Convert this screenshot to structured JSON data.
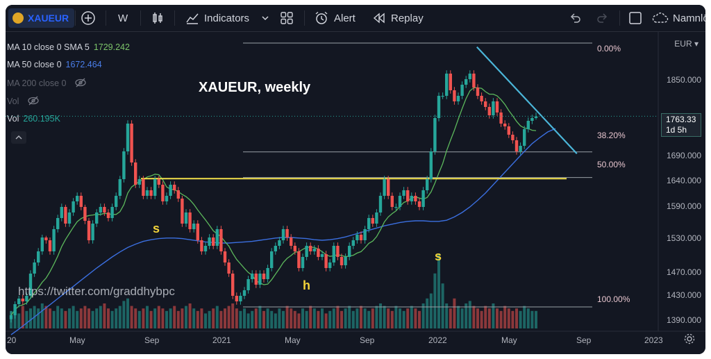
{
  "toolbar": {
    "symbol": "XAUEUR",
    "interval": "W",
    "indicators_label": "Indicators",
    "alert_label": "Alert",
    "replay_label": "Replay",
    "layout_name": "Namnlö"
  },
  "legend": {
    "ma10": {
      "label": "MA 10 close 0 SMA 5",
      "value": "1729.242",
      "color": "#5cb85c"
    },
    "ma50": {
      "label": "MA 50 close 0",
      "value": "1672.464",
      "color": "#3b6fe0"
    },
    "ma200": {
      "label": "MA 200 close 0"
    },
    "vol": {
      "label": "Vol"
    },
    "vol2": {
      "label": "Vol",
      "value": "260.195K"
    }
  },
  "annotations": {
    "title": "XAUEUR, weekly",
    "watermark": "https://twitter.com/graddhybpc",
    "left_shoulder": "s",
    "head": "h",
    "right_shoulder": "s"
  },
  "price_axis": {
    "currency": "EUR",
    "last_price": "1763.33",
    "countdown": "1d 5h"
  },
  "colors": {
    "up": "#26a69a",
    "down": "#ef5350",
    "neckline": "#f2e04b",
    "trendline": "#4bb6d9",
    "fib": "#9aa0a6"
  },
  "chart_data": {
    "type": "candlestick",
    "title": "XAUEUR, weekly",
    "ylim": [
      1370,
      1930
    ],
    "y_ticks": [
      1850,
      1690,
      1640,
      1590,
      1530,
      1470,
      1430,
      1390
    ],
    "y_tick_labels": [
      "1850.000",
      "1690.000",
      "1640.000",
      "1590.000",
      "1530.000",
      "1470.000",
      "1430.000",
      "1390.000"
    ],
    "x_ticks": [
      {
        "label": "20",
        "t": 0
      },
      {
        "label": "May",
        "t": 17
      },
      {
        "label": "Sep",
        "t": 35
      },
      {
        "label": "2021",
        "t": 52
      },
      {
        "label": "May",
        "t": 70
      },
      {
        "label": "Sep",
        "t": 88
      },
      {
        "label": "2022",
        "t": 104
      },
      {
        "label": "May",
        "t": 122
      },
      {
        "label": "Sep",
        "t": 140
      },
      {
        "label": "2023",
        "t": 157
      }
    ],
    "candles": {
      "o": [
        1398,
        1405,
        1425,
        1435,
        1430,
        1440,
        1480,
        1500,
        1520,
        1545,
        1540,
        1520,
        1560,
        1580,
        1600,
        1570,
        1590,
        1610,
        1620,
        1600,
        1575,
        1540,
        1570,
        1590,
        1600,
        1590,
        1580,
        1600,
        1620,
        1650,
        1700,
        1750,
        1680,
        1640,
        1650,
        1620,
        1630,
        1620,
        1650,
        1640,
        1610,
        1620,
        1640,
        1630,
        1615,
        1570,
        1590,
        1560,
        1570,
        1540,
        1520,
        1530,
        1545,
        1530,
        1560,
        1520,
        1500,
        1480,
        1440,
        1430,
        1440,
        1450,
        1470,
        1480,
        1460,
        1480,
        1470,
        1490,
        1520,
        1530,
        1540,
        1560,
        1545,
        1530,
        1520,
        1490,
        1510,
        1530,
        1520,
        1525,
        1510,
        1515,
        1490,
        1500,
        1530,
        1510,
        1495,
        1510,
        1530,
        1540,
        1550,
        1540,
        1560,
        1580,
        1570,
        1590,
        1620,
        1650,
        1620,
        1600,
        1600,
        1620,
        1630,
        1610,
        1620,
        1610,
        1600,
        1630,
        1650,
        1700,
        1760,
        1800,
        1800,
        1840,
        1810,
        1790,
        1800,
        1820,
        1830,
        1840,
        1815,
        1800,
        1790,
        1780,
        1765,
        1790,
        1770,
        1750,
        1745,
        1730,
        1720,
        1700,
        1710,
        1740,
        1755,
        1760
      ],
      "c": [
        1405,
        1425,
        1435,
        1430,
        1440,
        1480,
        1500,
        1520,
        1545,
        1540,
        1520,
        1560,
        1580,
        1600,
        1570,
        1590,
        1610,
        1620,
        1600,
        1575,
        1540,
        1570,
        1590,
        1600,
        1590,
        1580,
        1600,
        1620,
        1650,
        1700,
        1750,
        1680,
        1640,
        1650,
        1620,
        1630,
        1620,
        1650,
        1640,
        1610,
        1620,
        1640,
        1630,
        1615,
        1570,
        1590,
        1560,
        1570,
        1540,
        1520,
        1530,
        1545,
        1530,
        1560,
        1520,
        1500,
        1480,
        1440,
        1430,
        1440,
        1450,
        1470,
        1480,
        1460,
        1480,
        1470,
        1490,
        1520,
        1530,
        1540,
        1560,
        1545,
        1530,
        1520,
        1490,
        1510,
        1530,
        1520,
        1525,
        1510,
        1515,
        1490,
        1500,
        1530,
        1510,
        1495,
        1510,
        1530,
        1540,
        1550,
        1540,
        1560,
        1580,
        1570,
        1590,
        1620,
        1650,
        1620,
        1600,
        1600,
        1620,
        1630,
        1610,
        1620,
        1610,
        1600,
        1630,
        1650,
        1700,
        1760,
        1800,
        1800,
        1840,
        1810,
        1790,
        1800,
        1820,
        1830,
        1840,
        1815,
        1800,
        1790,
        1780,
        1765,
        1790,
        1770,
        1750,
        1745,
        1730,
        1720,
        1700,
        1710,
        1740,
        1755,
        1760,
        1763
      ],
      "h": [
        1412,
        1430,
        1440,
        1442,
        1446,
        1486,
        1506,
        1526,
        1550,
        1548,
        1545,
        1566,
        1586,
        1606,
        1604,
        1596,
        1616,
        1626,
        1626,
        1604,
        1580,
        1576,
        1596,
        1606,
        1606,
        1596,
        1606,
        1626,
        1656,
        1706,
        1756,
        1756,
        1686,
        1656,
        1656,
        1636,
        1636,
        1656,
        1656,
        1646,
        1626,
        1646,
        1646,
        1636,
        1620,
        1596,
        1596,
        1576,
        1576,
        1546,
        1536,
        1551,
        1551,
        1566,
        1566,
        1526,
        1506,
        1486,
        1446,
        1446,
        1456,
        1476,
        1486,
        1486,
        1486,
        1486,
        1496,
        1526,
        1536,
        1546,
        1566,
        1566,
        1551,
        1536,
        1526,
        1516,
        1536,
        1536,
        1531,
        1531,
        1521,
        1521,
        1506,
        1536,
        1536,
        1516,
        1516,
        1536,
        1546,
        1556,
        1556,
        1566,
        1586,
        1586,
        1596,
        1626,
        1656,
        1656,
        1626,
        1606,
        1626,
        1636,
        1636,
        1626,
        1626,
        1616,
        1636,
        1656,
        1706,
        1766,
        1806,
        1806,
        1846,
        1846,
        1816,
        1806,
        1826,
        1836,
        1846,
        1846,
        1821,
        1806,
        1796,
        1786,
        1796,
        1796,
        1776,
        1756,
        1751,
        1736,
        1726,
        1716,
        1746,
        1761,
        1766,
        1770
      ],
      "l": [
        1392,
        1399,
        1419,
        1424,
        1424,
        1434,
        1474,
        1494,
        1514,
        1534,
        1514,
        1514,
        1554,
        1574,
        1564,
        1564,
        1584,
        1604,
        1594,
        1569,
        1534,
        1534,
        1564,
        1584,
        1584,
        1574,
        1574,
        1594,
        1614,
        1644,
        1694,
        1674,
        1634,
        1634,
        1614,
        1614,
        1614,
        1614,
        1634,
        1604,
        1604,
        1614,
        1624,
        1609,
        1564,
        1564,
        1554,
        1554,
        1534,
        1514,
        1514,
        1524,
        1524,
        1524,
        1514,
        1494,
        1474,
        1434,
        1424,
        1424,
        1434,
        1444,
        1464,
        1454,
        1454,
        1464,
        1464,
        1484,
        1514,
        1524,
        1534,
        1539,
        1524,
        1514,
        1484,
        1484,
        1504,
        1514,
        1514,
        1504,
        1504,
        1484,
        1484,
        1494,
        1504,
        1489,
        1489,
        1504,
        1524,
        1534,
        1534,
        1534,
        1554,
        1564,
        1564,
        1584,
        1614,
        1614,
        1594,
        1594,
        1594,
        1614,
        1604,
        1604,
        1604,
        1594,
        1594,
        1624,
        1644,
        1694,
        1754,
        1794,
        1794,
        1804,
        1784,
        1784,
        1794,
        1814,
        1824,
        1809,
        1794,
        1784,
        1774,
        1759,
        1759,
        1764,
        1744,
        1739,
        1724,
        1714,
        1694,
        1694,
        1704,
        1734,
        1749,
        1757
      ],
      "last_price": 1763.33
    },
    "volume": [
      7,
      8,
      6,
      9,
      7,
      8,
      9,
      8,
      10,
      9,
      8,
      7,
      9,
      8,
      7,
      8,
      9,
      7,
      8,
      9,
      8,
      7,
      8,
      9,
      10,
      8,
      7,
      8,
      9,
      11,
      12,
      9,
      8,
      7,
      8,
      9,
      7,
      8,
      9,
      8,
      7,
      8,
      9,
      7,
      8,
      9,
      10,
      8,
      7,
      8,
      6,
      7,
      8,
      9,
      7,
      8,
      9,
      10,
      8,
      7,
      8,
      6,
      7,
      8,
      9,
      7,
      8,
      7,
      6,
      8,
      7,
      9,
      8,
      7,
      6,
      8,
      7,
      9,
      8,
      7,
      8,
      6,
      7,
      8,
      9,
      7,
      8,
      9,
      7,
      8,
      9,
      8,
      7,
      8,
      9,
      10,
      9,
      8,
      7,
      9,
      8,
      7,
      8,
      9,
      8,
      7,
      10,
      12,
      14,
      22,
      30,
      18,
      10,
      8,
      12,
      9,
      8,
      10,
      11,
      9,
      8,
      7,
      9,
      8,
      10,
      8,
      7,
      9,
      8,
      7,
      8,
      7,
      9,
      8,
      7,
      7
    ],
    "ma50": [
      1370,
      1380,
      1391,
      1402,
      1413,
      1424,
      1435,
      1446,
      1457,
      1468,
      1479,
      1490,
      1500,
      1510,
      1519,
      1527,
      1533,
      1538,
      1541,
      1543,
      1544,
      1544,
      1543,
      1541,
      1539,
      1537,
      1536,
      1535,
      1535,
      1536,
      1537,
      1538,
      1540,
      1542,
      1544,
      1545,
      1545,
      1544,
      1543,
      1541,
      1540,
      1541,
      1543,
      1546,
      1550,
      1554,
      1558,
      1562,
      1566,
      1569,
      1572,
      1574,
      1575,
      1575,
      1574,
      1574,
      1576,
      1582,
      1590,
      1600,
      1612,
      1625,
      1640,
      1655,
      1670,
      1685,
      1700,
      1714,
      1725,
      1735,
      1741
    ],
    "fib_levels": [
      {
        "label": "0.00%",
        "value": 1895
      },
      {
        "label": "38.20%",
        "value": 1699
      },
      {
        "label": "50.00%",
        "value": 1653
      },
      {
        "label": "100.00%",
        "value": 1420
      }
    ],
    "neckline": 1651,
    "trendline": [
      {
        "t": 113,
        "y": 1888
      },
      {
        "t": 133,
        "y": 1696
      }
    ]
  }
}
